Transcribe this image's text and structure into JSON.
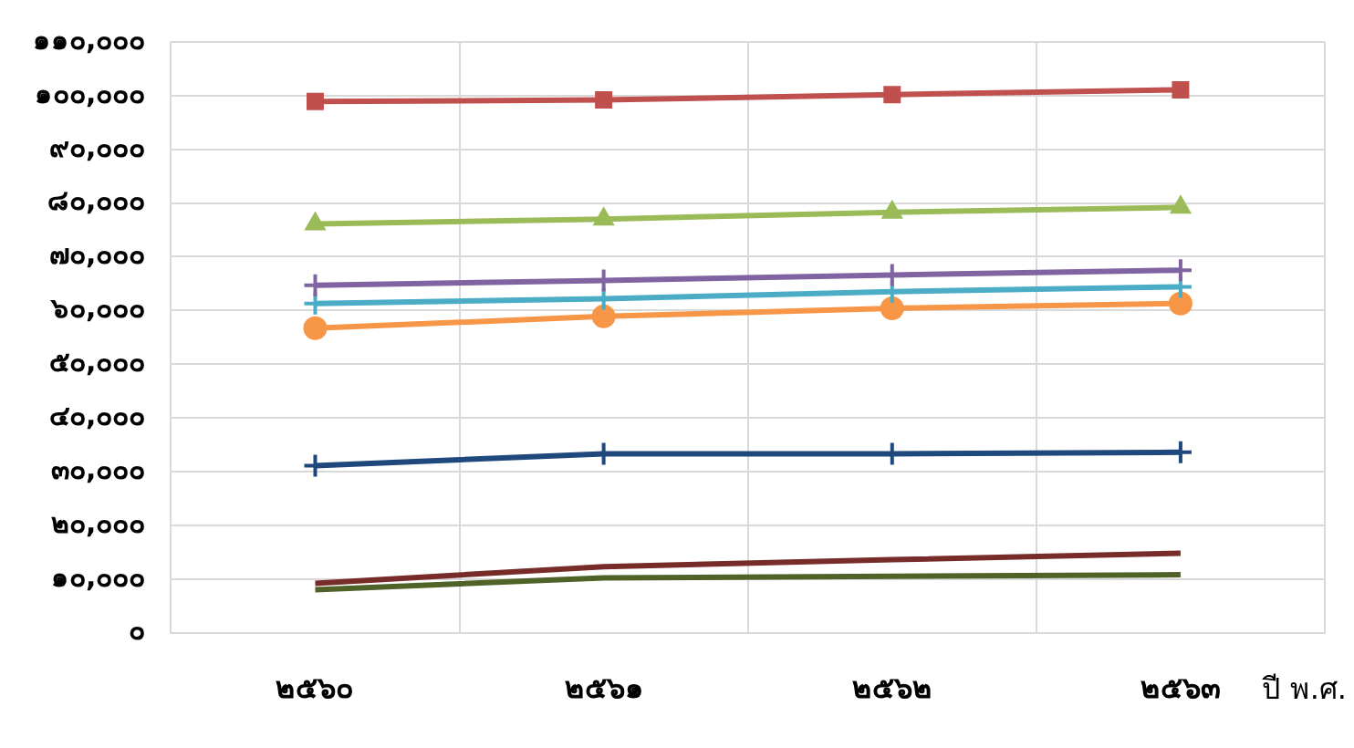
{
  "chart_data": {
    "type": "line",
    "xlabel": "ปี พ.ศ.",
    "categories": [
      "๒๕๖๐",
      "๒๕๖๑",
      "๒๕๖๒",
      "๒๕๖๓"
    ],
    "ylim": [
      0,
      110000
    ],
    "yticks": [
      {
        "value": 0,
        "label": "๐"
      },
      {
        "value": 10000,
        "label": "๑๐,๐๐๐"
      },
      {
        "value": 20000,
        "label": "๒๐,๐๐๐"
      },
      {
        "value": 30000,
        "label": "๓๐,๐๐๐"
      },
      {
        "value": 40000,
        "label": "๔๐,๐๐๐"
      },
      {
        "value": 50000,
        "label": "๕๐,๐๐๐"
      },
      {
        "value": 60000,
        "label": "๖๐,๐๐๐"
      },
      {
        "value": 70000,
        "label": "๗๐,๐๐๐"
      },
      {
        "value": 80000,
        "label": "๘๐,๐๐๐"
      },
      {
        "value": 90000,
        "label": "๙๐,๐๐๐"
      },
      {
        "value": 100000,
        "label": "๑๐๐,๐๐๐"
      },
      {
        "value": 110000,
        "label": "๑๑๐,๐๐๐"
      }
    ],
    "grid": true,
    "legend": false,
    "line_style": "solid",
    "series": [
      {
        "color": "#c0504d",
        "marker": "square",
        "values": [
          98900,
          99200,
          100200,
          101100
        ]
      },
      {
        "color": "#9bbb59",
        "marker": "triangle",
        "values": [
          76100,
          77000,
          78300,
          79200
        ]
      },
      {
        "color": "#8064a2",
        "marker": "cross",
        "values": [
          64700,
          65600,
          66600,
          67500
        ]
      },
      {
        "color": "#4bacc6",
        "marker": "cross",
        "values": [
          61300,
          62200,
          63500,
          64400
        ]
      },
      {
        "color": "#f79646",
        "marker": "circle",
        "values": [
          56700,
          58900,
          60400,
          61300
        ]
      },
      {
        "color": "#1f497d",
        "marker": "cross",
        "values": [
          31100,
          33300,
          33300,
          33600
        ]
      },
      {
        "color": "#772c2a",
        "marker": "none",
        "values": [
          9200,
          12300,
          13600,
          14800
        ]
      },
      {
        "color": "#4f6228",
        "marker": "none",
        "values": [
          8000,
          10200,
          10500,
          10800
        ]
      }
    ]
  }
}
